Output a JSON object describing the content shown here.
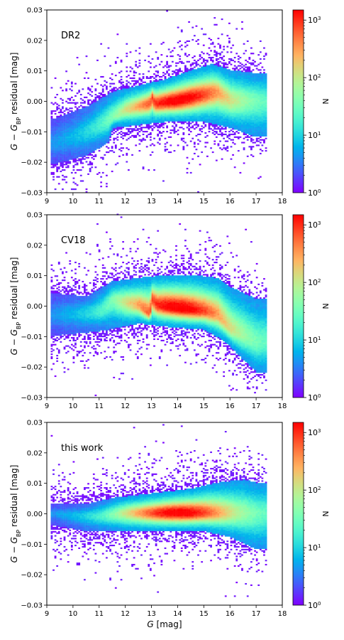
{
  "chart_data": [
    {
      "type": "heatmap",
      "panel_label": "DR2",
      "xlabel": "",
      "ylabel": "G − G_BP residual [mag]",
      "xlim": [
        9,
        18
      ],
      "ylim": [
        -0.03,
        0.03
      ],
      "x_ticks": [
        "9",
        "10",
        "11",
        "12",
        "13",
        "14",
        "15",
        "16",
        "17",
        "18"
      ],
      "y_ticks": [
        "-0.03",
        "-0.02",
        "-0.01",
        "0.00",
        "0.01",
        "0.02",
        "0.03"
      ],
      "colorbar": {
        "label": "N",
        "scale": "log",
        "range": [
          1,
          1500
        ],
        "ticks": [
          "10^0",
          "10^1",
          "10^2",
          "10^3"
        ]
      },
      "ridge": [
        [
          9.2,
          -0.014
        ],
        [
          10.0,
          -0.012
        ],
        [
          10.8,
          -0.009
        ],
        [
          11.4,
          -0.006
        ],
        [
          12.0,
          -0.003
        ],
        [
          12.9,
          -0.001
        ],
        [
          13.0,
          0.001
        ],
        [
          13.1,
          -0.001
        ],
        [
          14.0,
          0.0
        ],
        [
          15.0,
          0.002
        ],
        [
          15.5,
          0.003
        ],
        [
          16.0,
          0.0
        ],
        [
          17.0,
          0.0
        ]
      ],
      "upper_envelope": [
        [
          9.2,
          -0.006
        ],
        [
          10.5,
          -0.002
        ],
        [
          11.5,
          0.003
        ],
        [
          12.5,
          0.005
        ],
        [
          13.5,
          0.007
        ],
        [
          14.5,
          0.01
        ],
        [
          15.3,
          0.012
        ],
        [
          16.0,
          0.01
        ],
        [
          17.0,
          0.009
        ]
      ],
      "lower_envelope": [
        [
          9.2,
          -0.021
        ],
        [
          10.5,
          -0.018
        ],
        [
          11.3,
          -0.014
        ],
        [
          11.5,
          -0.009
        ],
        [
          12.5,
          -0.008
        ],
        [
          13.5,
          -0.007
        ],
        [
          15.0,
          -0.007
        ],
        [
          16.0,
          -0.009
        ],
        [
          17.0,
          -0.012
        ]
      ],
      "peak": {
        "x": 14.0,
        "y": 0.0,
        "n": 1500
      }
    },
    {
      "type": "heatmap",
      "panel_label": "CV18",
      "xlabel": "",
      "ylabel": "G − G_BP residual [mag]",
      "xlim": [
        9,
        18
      ],
      "ylim": [
        -0.03,
        0.03
      ],
      "x_ticks": [
        "9",
        "10",
        "11",
        "12",
        "13",
        "14",
        "15",
        "16",
        "17",
        "18"
      ],
      "y_ticks": [
        "-0.03",
        "-0.02",
        "-0.01",
        "0.00",
        "0.01",
        "0.02",
        "0.03"
      ],
      "colorbar": {
        "label": "N",
        "scale": "log",
        "range": [
          1,
          1500
        ],
        "ticks": [
          "10^0",
          "10^1",
          "10^2",
          "10^3"
        ]
      },
      "ridge": [
        [
          9.2,
          -0.003
        ],
        [
          10.0,
          -0.003
        ],
        [
          11.0,
          -0.002
        ],
        [
          11.5,
          0.002
        ],
        [
          12.5,
          0.0
        ],
        [
          12.9,
          -0.003
        ],
        [
          13.0,
          0.002
        ],
        [
          13.2,
          0.0
        ],
        [
          14.0,
          -0.001
        ],
        [
          15.0,
          -0.002
        ],
        [
          15.5,
          -0.003
        ],
        [
          16.0,
          -0.008
        ],
        [
          17.0,
          -0.012
        ]
      ],
      "upper_envelope": [
        [
          9.2,
          0.004
        ],
        [
          10.5,
          0.003
        ],
        [
          11.5,
          0.008
        ],
        [
          12.5,
          0.009
        ],
        [
          13.5,
          0.01
        ],
        [
          14.5,
          0.01
        ],
        [
          15.5,
          0.009
        ],
        [
          16.0,
          0.006
        ],
        [
          17.0,
          0.002
        ]
      ],
      "lower_envelope": [
        [
          9.2,
          -0.01
        ],
        [
          10.5,
          -0.009
        ],
        [
          11.3,
          -0.008
        ],
        [
          12.5,
          -0.006
        ],
        [
          13.5,
          -0.007
        ],
        [
          15.0,
          -0.008
        ],
        [
          15.8,
          -0.012
        ],
        [
          16.5,
          -0.018
        ],
        [
          17.0,
          -0.022
        ]
      ],
      "peak": {
        "x": 14.0,
        "y": -0.001,
        "n": 1500
      }
    },
    {
      "type": "heatmap",
      "panel_label": "this work",
      "xlabel": "G [mag]",
      "ylabel": "G − G_BP residual [mag]",
      "xlim": [
        9,
        18
      ],
      "ylim": [
        -0.03,
        0.03
      ],
      "x_ticks": [
        "9",
        "10",
        "11",
        "12",
        "13",
        "14",
        "15",
        "16",
        "17",
        "18"
      ],
      "y_ticks": [
        "-0.03",
        "-0.02",
        "-0.01",
        "0.00",
        "0.01",
        "0.02",
        "0.03"
      ],
      "colorbar": {
        "label": "N",
        "scale": "log",
        "range": [
          1,
          1500
        ],
        "ticks": [
          "10^0",
          "10^1",
          "10^2",
          "10^3"
        ]
      },
      "ridge": [
        [
          9.2,
          0.0
        ],
        [
          10.0,
          -0.001
        ],
        [
          11.0,
          -0.001
        ],
        [
          12.0,
          0.0
        ],
        [
          13.0,
          0.0
        ],
        [
          14.0,
          0.0
        ],
        [
          15.0,
          0.0
        ],
        [
          16.0,
          0.0
        ],
        [
          17.0,
          0.0
        ]
      ],
      "upper_envelope": [
        [
          9.2,
          0.003
        ],
        [
          10.5,
          0.003
        ],
        [
          11.5,
          0.005
        ],
        [
          12.5,
          0.006
        ],
        [
          13.5,
          0.007
        ],
        [
          14.5,
          0.008
        ],
        [
          15.5,
          0.01
        ],
        [
          16.5,
          0.011
        ],
        [
          17.0,
          0.01
        ]
      ],
      "lower_envelope": [
        [
          9.2,
          -0.004
        ],
        [
          10.5,
          -0.006
        ],
        [
          11.3,
          -0.006
        ],
        [
          12.5,
          -0.006
        ],
        [
          13.5,
          -0.006
        ],
        [
          15.0,
          -0.006
        ],
        [
          16.0,
          -0.008
        ],
        [
          16.5,
          -0.01
        ],
        [
          17.0,
          -0.012
        ]
      ],
      "peak": {
        "x": 14.0,
        "y": 0.0,
        "n": 1500
      }
    }
  ]
}
